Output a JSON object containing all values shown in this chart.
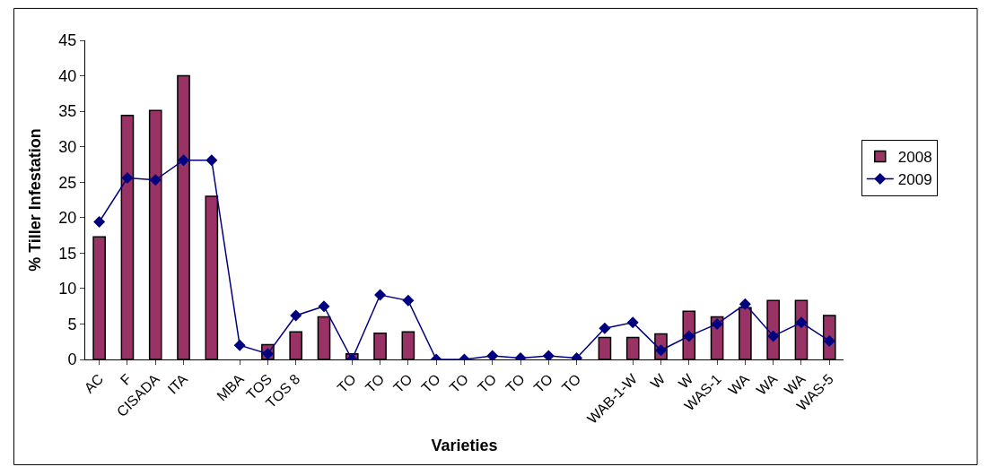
{
  "chart_data": {
    "type": "bar",
    "xlabel": "Varieties",
    "ylabel": "% Tiller Infestation",
    "categories": [
      "AC",
      "F",
      "CISADA",
      "ITA",
      null,
      "MBA",
      "TOS",
      "TOS 8",
      null,
      "TO",
      "TO",
      "TO",
      "TO",
      "TO",
      "TO",
      "TO",
      "TO",
      "TO",
      null,
      "WAB-1-W",
      "W",
      "W",
      "WAS-1",
      "WA",
      "WA",
      "WA",
      "WAS-5"
    ],
    "series": [
      {
        "name": "2008",
        "color": "#993366",
        "values": [
          17.3,
          34.4,
          35.1,
          40.0,
          23.0,
          null,
          2.1,
          3.9,
          6.0,
          0.8,
          3.7,
          3.9,
          null,
          null,
          null,
          null,
          null,
          null,
          3.1,
          3.1,
          3.6,
          6.8,
          6.0,
          7.3,
          8.3,
          8.3,
          6.2
        ]
      },
      {
        "name": "2009",
        "type": "line",
        "color": "#000080",
        "marker": "diamond",
        "line_style": "solid",
        "values": [
          19.4,
          25.6,
          25.3,
          28.1,
          28.1,
          2.0,
          0.8,
          6.2,
          7.5,
          0,
          9.1,
          8.3,
          0,
          0,
          0.5,
          0.2,
          0.5,
          0.2,
          4.4,
          5.2,
          1.3,
          3.3,
          5.0,
          7.8,
          3.3,
          5.2,
          2.6
        ]
      }
    ],
    "ylim": [
      0,
      45
    ],
    "yticks": [
      0,
      5,
      10,
      15,
      20,
      25,
      30,
      35,
      40,
      45
    ],
    "grid": false,
    "legend": "right"
  }
}
